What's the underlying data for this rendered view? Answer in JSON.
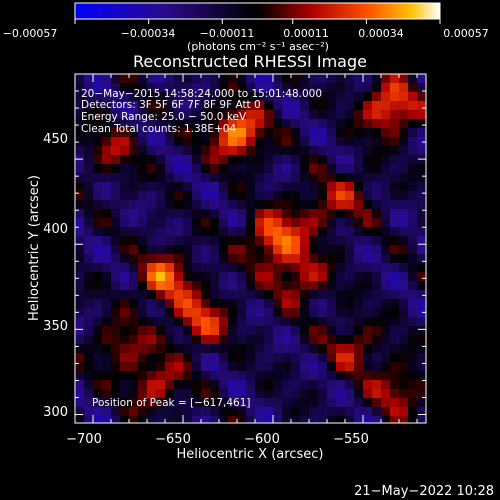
{
  "chart_data": {
    "type": "heatmap",
    "title": "Reconstructed RHESSI Image",
    "xlabel": "Heliocentric X (arcsec)",
    "ylabel": "Heliocentric Y (arcsec)",
    "xlim": [
      -710,
      -515
    ],
    "ylim": [
      295,
      500
    ],
    "x_ticks": [
      -700,
      -650,
      -600,
      -550
    ],
    "y_ticks": [
      300,
      350,
      400,
      450
    ],
    "x_tick_labels": [
      "−700",
      "−650",
      "−600",
      "−550"
    ],
    "y_tick_labels": [
      "300",
      "350",
      "400",
      "450"
    ],
    "colorbar": {
      "min": -0.00057,
      "max": 0.00057,
      "tick_labels": [
        "−0.00057",
        "−0.00034",
        "−0.00011",
        "0.00011",
        "0.00034",
        "0.00057"
      ],
      "unit_label": "(photons cm⁻² s⁻¹ asec⁻²)"
    },
    "annotations": [
      "20−May−2015 14:58:24.000 to 15:01:48.000",
      "Detectors: 3F 5F 6F 7F 8F 9F  Att 0",
      "Energy Range: 25.0 − 50.0 keV",
      "Clean     Total counts: 1.38E+04"
    ],
    "peak_label": "Position of Peak = [−617,461]",
    "peak": [
      -617,
      461
    ],
    "sources": [
      {
        "x": -620,
        "y": 465,
        "value": 0.00057
      },
      {
        "x": -535,
        "y": 480,
        "value": 0.00052
      },
      {
        "x": -600,
        "y": 403,
        "value": 0.0005
      },
      {
        "x": -660,
        "y": 380,
        "value": 0.00045
      },
      {
        "x": -640,
        "y": 355,
        "value": 0.0004
      },
      {
        "x": -585,
        "y": 380,
        "value": 0.00036
      },
      {
        "x": -685,
        "y": 340,
        "value": 0.0003
      },
      {
        "x": -665,
        "y": 317,
        "value": 0.00035
      },
      {
        "x": -555,
        "y": 340,
        "value": 0.0003
      },
      {
        "x": -530,
        "y": 315,
        "value": 0.00033
      },
      {
        "x": -575,
        "y": 420,
        "value": 0.00025
      },
      {
        "x": -690,
        "y": 455,
        "value": 0.00025
      },
      {
        "x": -555,
        "y": 430,
        "value": 0.0002
      }
    ]
  },
  "footer": {
    "timestamp": "21−May−2022 10:28"
  }
}
